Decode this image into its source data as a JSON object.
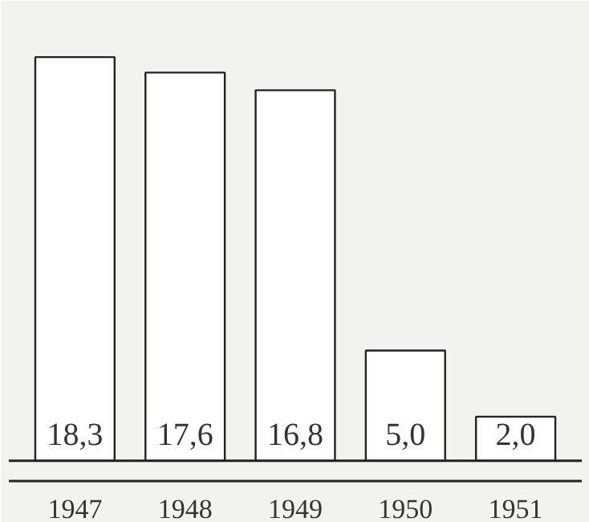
{
  "chart_data": {
    "type": "bar",
    "categories": [
      "1947",
      "1948",
      "1949",
      "1950",
      "1951"
    ],
    "values": [
      18.3,
      17.6,
      16.8,
      5.0,
      2.0
    ],
    "value_labels": [
      "18,3",
      "17,6",
      "16,8",
      "5,0",
      "2,0"
    ],
    "color": "#ffffff"
  }
}
